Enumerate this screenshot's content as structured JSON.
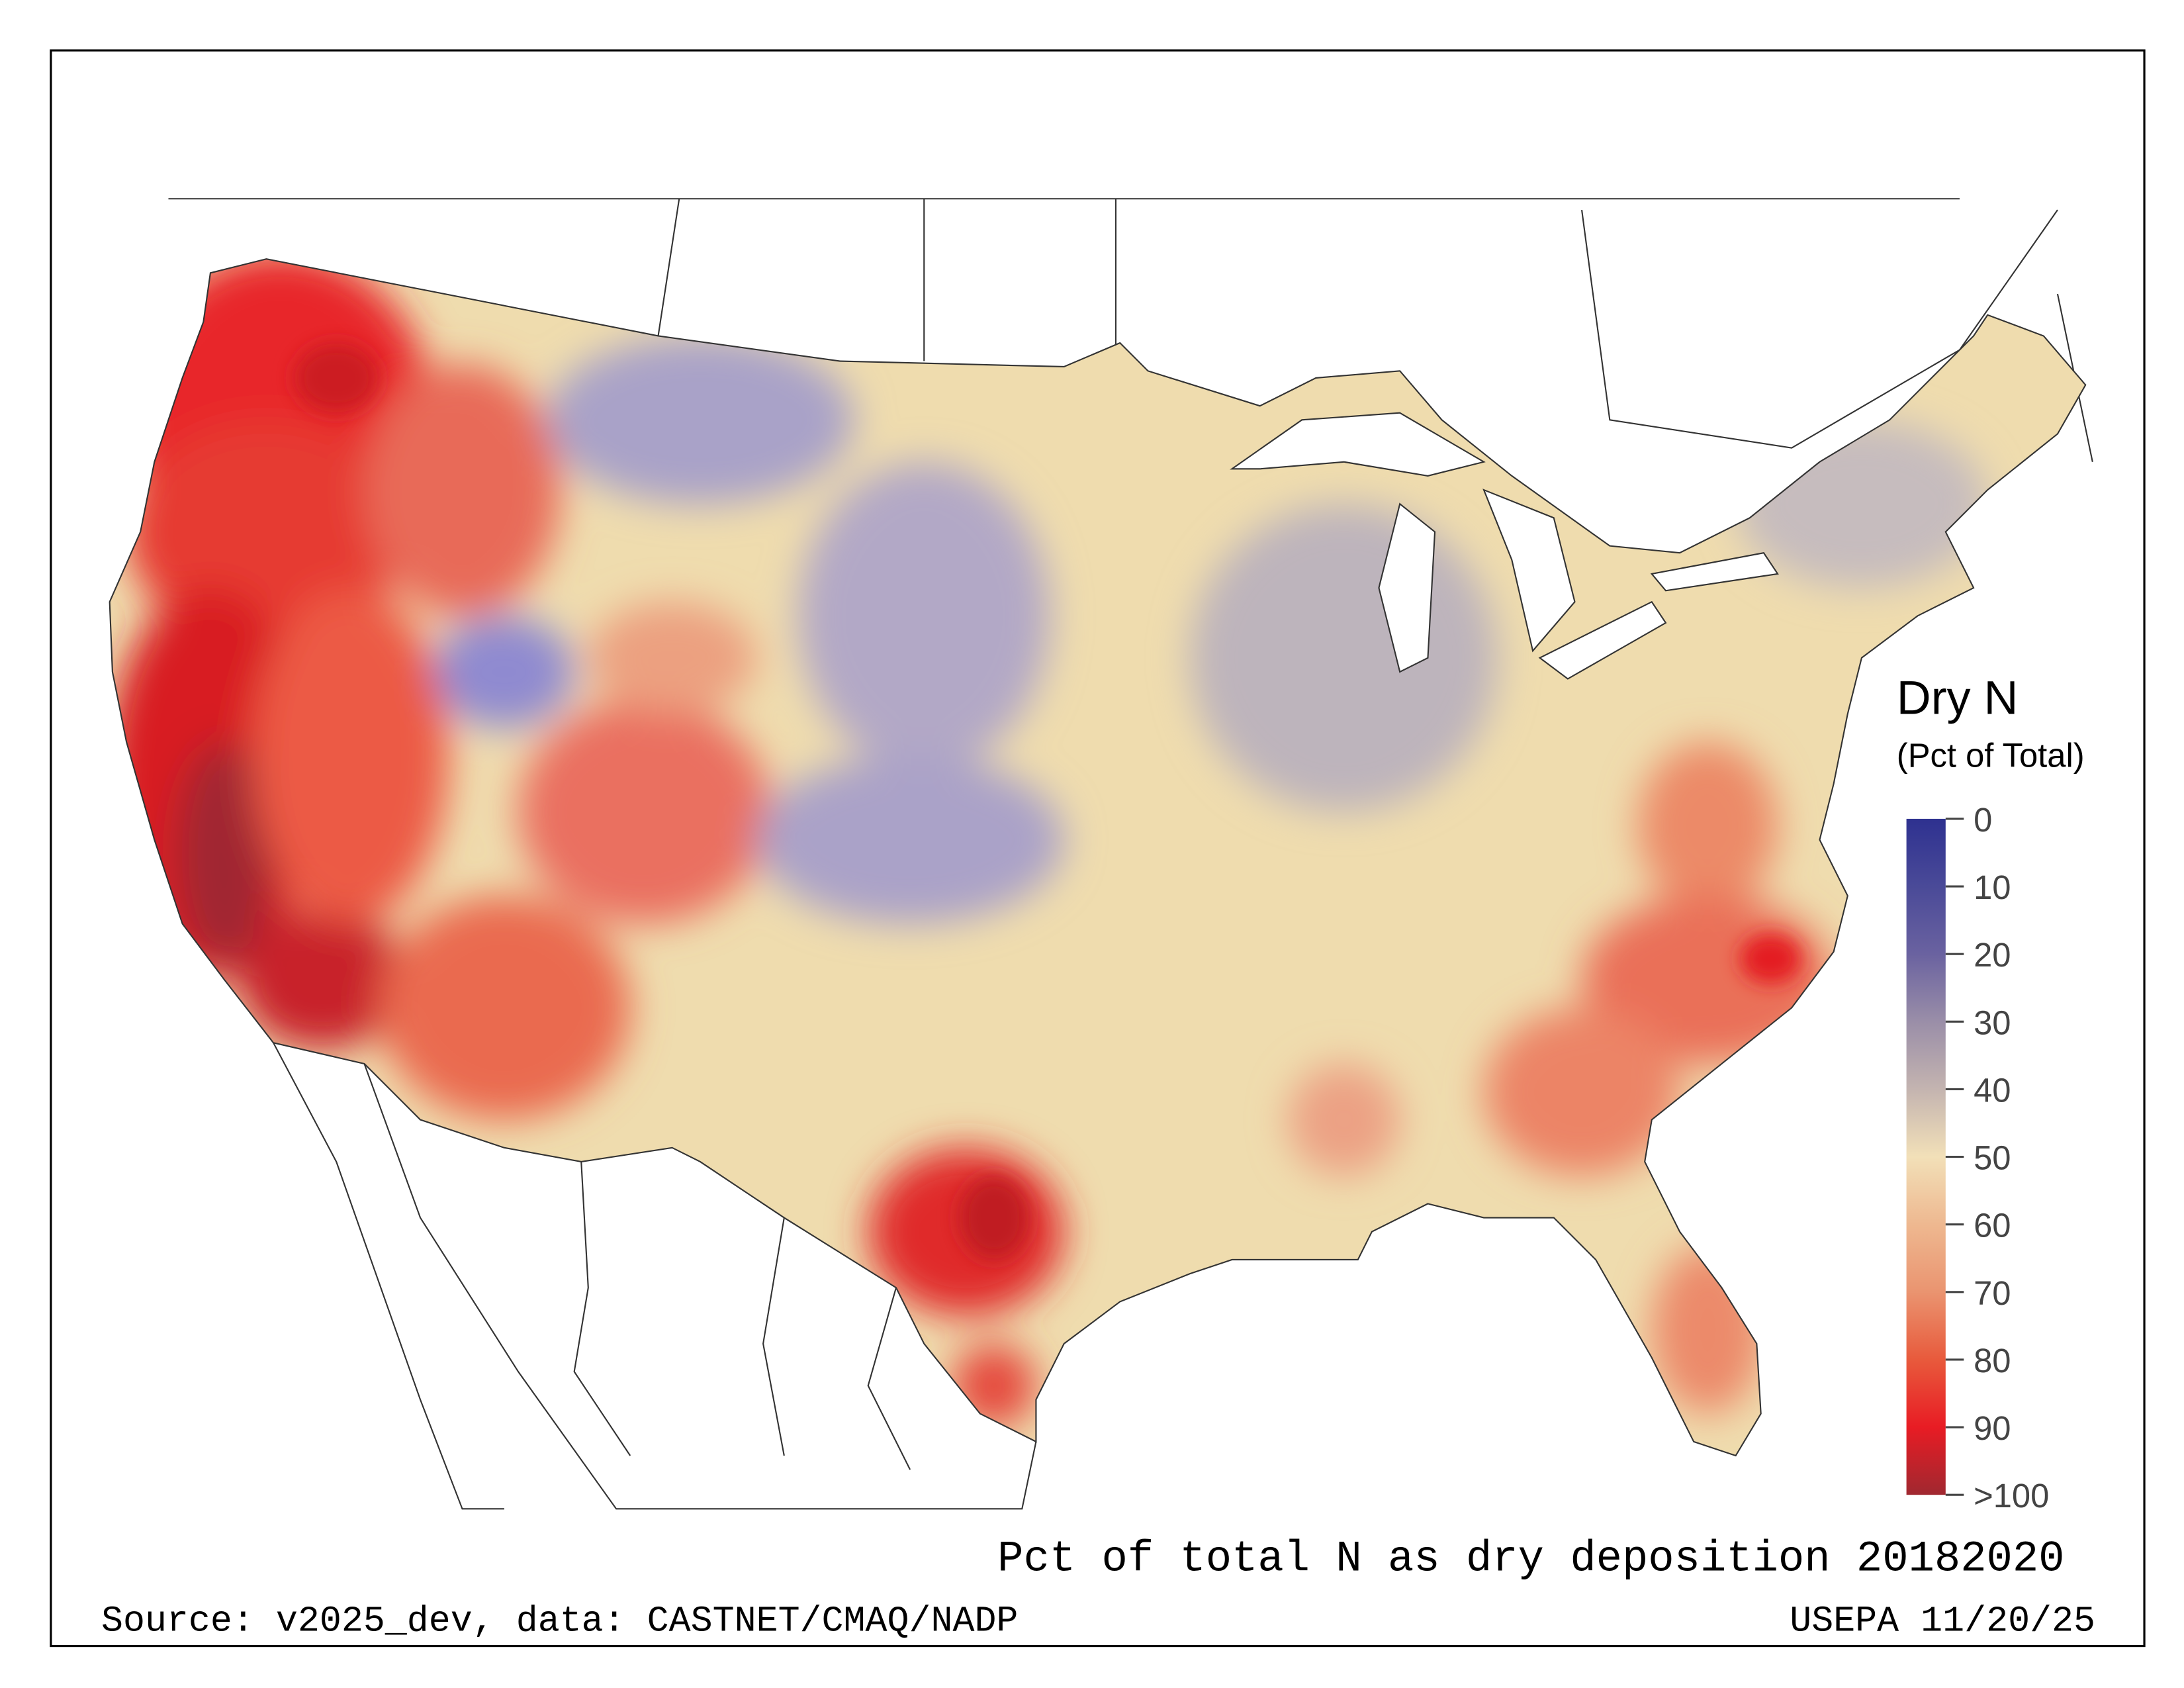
{
  "legend": {
    "title": "Dry N",
    "subtitle": "(Pct of Total)",
    "ticks": [
      "0",
      "10",
      "20",
      "30",
      "40",
      "50",
      "60",
      "70",
      "80",
      "90",
      ">100"
    ],
    "colors": [
      "#2e3190",
      "#4a4a98",
      "#6a62a0",
      "#9a8ea8",
      "#c4b4b0",
      "#f2e0b8",
      "#eeb890",
      "#ea9470",
      "#e85a3c",
      "#e81c24",
      "#a02830"
    ]
  },
  "map": {
    "base_color": "#efdcae",
    "lake_color": "#ffffff",
    "border_color": "#333333"
  },
  "footer": {
    "title": "Pct of total N as dry deposition 20182020",
    "source": "Source: v2025_dev, data: CASTNET/CMAQ/NADP",
    "credit": "USEPA 11/20/25"
  }
}
